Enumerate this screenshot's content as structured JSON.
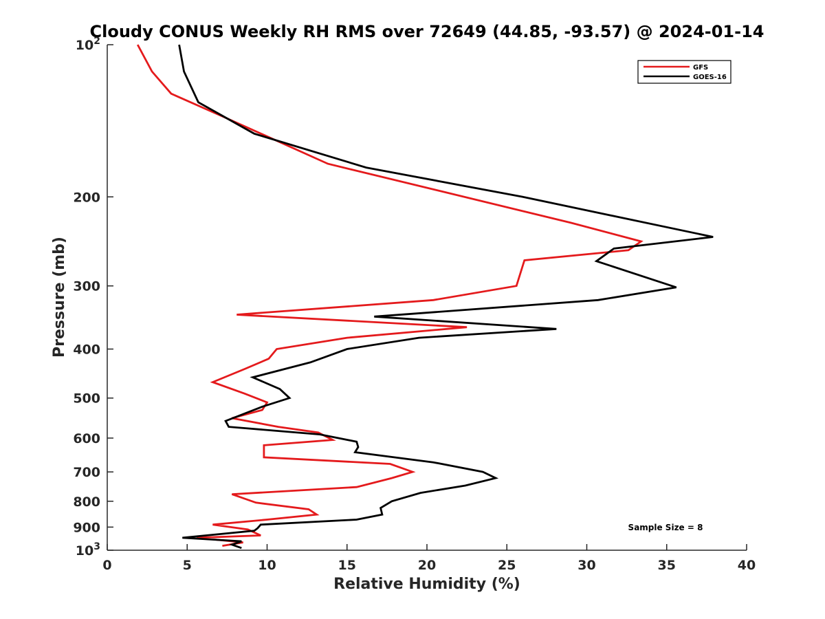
{
  "chart_data": {
    "type": "line",
    "title": "Cloudy CONUS Weekly RH RMS over 72649 (44.85, -93.57) @ 2024-01-14",
    "xlabel": "Relative Humidity (%)",
    "ylabel": "Pressure (mb)",
    "xlim": [
      0,
      40
    ],
    "ylim": [
      100,
      1000
    ],
    "y_scale": "log",
    "y_reversed": true,
    "x_ticks": [
      "0",
      "5",
      "10",
      "15",
      "20",
      "25",
      "30",
      "35",
      "40"
    ],
    "y_ticks": [
      {
        "value": 100,
        "base": "10",
        "exp": "2"
      },
      {
        "value": 200,
        "label": "200"
      },
      {
        "value": 300,
        "label": "300"
      },
      {
        "value": 400,
        "label": "400"
      },
      {
        "value": 500,
        "label": "500"
      },
      {
        "value": 600,
        "label": "600"
      },
      {
        "value": 700,
        "label": "700"
      },
      {
        "value": 800,
        "label": "800"
      },
      {
        "value": 900,
        "label": "900"
      },
      {
        "value": 1000,
        "base": "10",
        "exp": "3"
      }
    ],
    "grid": false,
    "legend_position": "top-right",
    "series": [
      {
        "name": "GFS",
        "color": "#e41a1c",
        "x": [
          1.9,
          2.8,
          4.0,
          7.3,
          13.8,
          29.0,
          33.4,
          32.6,
          26.1,
          25.6,
          20.4,
          8.1,
          22.5,
          15.0,
          10.6,
          10.1,
          8.6,
          6.6,
          8.6,
          10.0,
          9.7,
          7.8,
          10.7,
          13.2,
          14.1,
          9.8,
          9.8,
          17.7,
          19.1,
          17.8,
          15.6,
          7.8,
          9.3,
          12.6,
          13.1,
          10.0,
          6.6,
          8.8,
          9.6,
          5.6,
          8.5,
          7.2
        ],
        "y": [
          100,
          113,
          125,
          139,
          172,
          225,
          245,
          255,
          267,
          300,
          320,
          342,
          362,
          380,
          400,
          418,
          438,
          465,
          490,
          510,
          528,
          548,
          570,
          585,
          605,
          620,
          655,
          675,
          700,
          720,
          750,
          775,
          805,
          830,
          850,
          870,
          890,
          910,
          935,
          945,
          965,
          980
        ]
      },
      {
        "name": "GOES-16",
        "color": "#000000",
        "x": [
          4.5,
          4.8,
          5.7,
          9.2,
          16.2,
          26.0,
          37.9,
          31.7,
          30.6,
          35.6,
          30.7,
          16.7,
          28.1,
          19.5,
          15.0,
          12.7,
          9.1,
          10.8,
          11.4,
          9.7,
          7.4,
          7.6,
          13.3,
          15.6,
          15.7,
          15.5,
          20.4,
          23.5,
          24.3,
          22.4,
          19.6,
          17.8,
          17.1,
          17.2,
          15.6,
          9.6,
          9.4,
          9.2,
          4.7,
          8.4,
          7.8,
          8.4
        ],
        "y": [
          100,
          113,
          130,
          150,
          175,
          200,
          240,
          253,
          268,
          302,
          320,
          345,
          365,
          380,
          400,
          425,
          455,
          480,
          500,
          520,
          555,
          570,
          590,
          610,
          625,
          640,
          670,
          700,
          720,
          745,
          770,
          800,
          825,
          850,
          870,
          890,
          905,
          915,
          945,
          960,
          975,
          990
        ]
      }
    ],
    "annotations": [
      "Sample Size = 8"
    ]
  }
}
